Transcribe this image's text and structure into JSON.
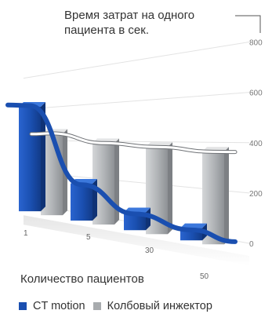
{
  "chart_data": {
    "type": "bar",
    "title_lines": [
      "Время затрат на одного",
      "пациента в сек."
    ],
    "xlabel": "Количество пациентов",
    "ylabel": "",
    "categories": [
      "1",
      "5",
      "30",
      "50"
    ],
    "ylim": [
      0,
      800
    ],
    "yticks": [
      "0",
      "200",
      "400",
      "600",
      "800"
    ],
    "series": [
      {
        "name": "CT motion",
        "color": "#1a4fb0",
        "values": [
          680,
          210,
          90,
          55
        ]
      },
      {
        "name": "Колбовый инжектор",
        "color": "#a8abae",
        "values": [
          500,
          440,
          420,
          400
        ]
      }
    ],
    "grid": true,
    "legend_position": "bottom"
  }
}
